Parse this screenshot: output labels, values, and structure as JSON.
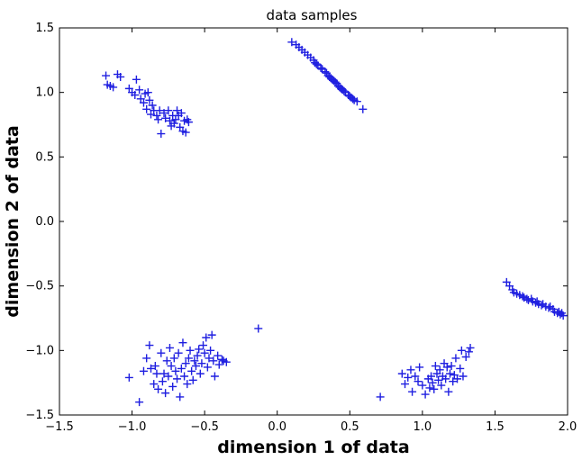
{
  "chart_data": {
    "type": "scatter",
    "title": "data samples",
    "xlabel": "dimension 1 of data",
    "ylabel": "dimension 2 of data",
    "xlim": [
      -1.5,
      2.0
    ],
    "ylim": [
      -1.5,
      1.5
    ],
    "xticks": [
      "−1.5",
      "−1.0",
      "−0.5",
      "0.0",
      "0.5",
      "1.0",
      "1.5",
      "2.0"
    ],
    "yticks": [
      "1.5",
      "1.0",
      "0.5",
      "0.0",
      "−0.5",
      "−1.0",
      "−1.5"
    ],
    "grid": false,
    "marker": "+",
    "marker_color": "#1f1fe0",
    "series": [
      {
        "points": [
          [
            -1.18,
            1.13
          ],
          [
            -1.17,
            1.06
          ],
          [
            -1.15,
            1.05
          ],
          [
            -1.13,
            1.04
          ],
          [
            -1.1,
            1.14
          ],
          [
            -1.08,
            1.12
          ],
          [
            -1.02,
            1.03
          ],
          [
            -1.0,
            1.0
          ],
          [
            -0.98,
            0.98
          ],
          [
            -0.97,
            1.1
          ],
          [
            -0.95,
            1.02
          ],
          [
            -0.94,
            0.95
          ],
          [
            -0.92,
            0.92
          ],
          [
            -0.91,
            0.99
          ],
          [
            -0.9,
            0.87
          ],
          [
            -0.89,
            1.0
          ],
          [
            -0.88,
            0.94
          ],
          [
            -0.87,
            0.83
          ],
          [
            -0.86,
            0.9
          ],
          [
            -0.85,
            0.86
          ],
          [
            -0.83,
            0.82
          ],
          [
            -0.82,
            0.79
          ],
          [
            -0.81,
            0.86
          ],
          [
            -0.8,
            0.68
          ],
          [
            -0.78,
            0.84
          ],
          [
            -0.77,
            0.8
          ],
          [
            -0.75,
            0.86
          ],
          [
            -0.74,
            0.78
          ],
          [
            -0.73,
            0.74
          ],
          [
            -0.72,
            0.82
          ],
          [
            -0.71,
            0.76
          ],
          [
            -0.7,
            0.79
          ],
          [
            -0.69,
            0.86
          ],
          [
            -0.68,
            0.82
          ],
          [
            -0.67,
            0.73
          ],
          [
            -0.66,
            0.84
          ],
          [
            -0.65,
            0.7
          ],
          [
            -0.64,
            0.78
          ],
          [
            -0.63,
            0.69
          ],
          [
            -0.62,
            0.79
          ],
          [
            -0.61,
            0.77
          ]
        ]
      },
      {
        "points": [
          [
            0.1,
            1.39
          ],
          [
            0.13,
            1.37
          ],
          [
            0.15,
            1.35
          ],
          [
            0.17,
            1.33
          ],
          [
            0.19,
            1.31
          ],
          [
            0.21,
            1.29
          ],
          [
            0.23,
            1.27
          ],
          [
            0.25,
            1.25
          ],
          [
            0.26,
            1.23
          ],
          [
            0.27,
            1.22
          ],
          [
            0.28,
            1.21
          ],
          [
            0.3,
            1.19
          ],
          [
            0.31,
            1.18
          ],
          [
            0.33,
            1.16
          ],
          [
            0.34,
            1.15
          ],
          [
            0.35,
            1.13
          ],
          [
            0.36,
            1.12
          ],
          [
            0.37,
            1.11
          ],
          [
            0.38,
            1.1
          ],
          [
            0.39,
            1.09
          ],
          [
            0.4,
            1.08
          ],
          [
            0.41,
            1.07
          ],
          [
            0.42,
            1.05
          ],
          [
            0.43,
            1.04
          ],
          [
            0.44,
            1.03
          ],
          [
            0.45,
            1.02
          ],
          [
            0.46,
            1.01
          ],
          [
            0.47,
            1.0
          ],
          [
            0.49,
            0.98
          ],
          [
            0.5,
            0.97
          ],
          [
            0.51,
            0.96
          ],
          [
            0.52,
            0.95
          ],
          [
            0.53,
            0.94
          ],
          [
            0.55,
            0.93
          ],
          [
            0.59,
            0.87
          ]
        ]
      },
      {
        "points": [
          [
            1.58,
            -0.47
          ],
          [
            1.6,
            -0.5
          ],
          [
            1.62,
            -0.53
          ],
          [
            1.63,
            -0.55
          ],
          [
            1.65,
            -0.56
          ],
          [
            1.67,
            -0.57
          ],
          [
            1.69,
            -0.58
          ],
          [
            1.7,
            -0.59
          ],
          [
            1.72,
            -0.6
          ],
          [
            1.73,
            -0.61
          ],
          [
            1.75,
            -0.6
          ],
          [
            1.76,
            -0.62
          ],
          [
            1.78,
            -0.63
          ],
          [
            1.79,
            -0.62
          ],
          [
            1.8,
            -0.64
          ],
          [
            1.82,
            -0.65
          ],
          [
            1.83,
            -0.64
          ],
          [
            1.85,
            -0.66
          ],
          [
            1.87,
            -0.67
          ],
          [
            1.88,
            -0.66
          ],
          [
            1.9,
            -0.68
          ],
          [
            1.91,
            -0.7
          ],
          [
            1.93,
            -0.71
          ],
          [
            1.94,
            -0.7
          ],
          [
            1.95,
            -0.72
          ],
          [
            1.96,
            -0.71
          ],
          [
            1.97,
            -0.73
          ]
        ]
      },
      {
        "points": [
          [
            -1.02,
            -1.21
          ],
          [
            -0.95,
            -1.4
          ],
          [
            -0.92,
            -1.16
          ],
          [
            -0.9,
            -1.06
          ],
          [
            -0.88,
            -0.96
          ],
          [
            -0.87,
            -1.14
          ],
          [
            -0.85,
            -1.26
          ],
          [
            -0.84,
            -1.12
          ],
          [
            -0.83,
            -1.18
          ],
          [
            -0.82,
            -1.3
          ],
          [
            -0.8,
            -1.02
          ],
          [
            -0.79,
            -1.24
          ],
          [
            -0.78,
            -1.18
          ],
          [
            -0.77,
            -1.33
          ],
          [
            -0.76,
            -1.08
          ],
          [
            -0.75,
            -1.2
          ],
          [
            -0.74,
            -0.98
          ],
          [
            -0.73,
            -1.12
          ],
          [
            -0.72,
            -1.28
          ],
          [
            -0.71,
            -1.06
          ],
          [
            -0.7,
            -1.16
          ],
          [
            -0.69,
            -1.22
          ],
          [
            -0.68,
            -1.02
          ],
          [
            -0.67,
            -1.36
          ],
          [
            -0.66,
            -1.14
          ],
          [
            -0.65,
            -0.94
          ],
          [
            -0.64,
            -1.2
          ],
          [
            -0.63,
            -1.1
          ],
          [
            -0.62,
            -1.26
          ],
          [
            -0.61,
            -1.06
          ],
          [
            -0.6,
            -1.0
          ],
          [
            -0.59,
            -1.16
          ],
          [
            -0.58,
            -1.23
          ],
          [
            -0.57,
            -1.08
          ],
          [
            -0.56,
            -1.12
          ],
          [
            -0.55,
            -1.04
          ],
          [
            -0.54,
            -0.99
          ],
          [
            -0.53,
            -1.18
          ],
          [
            -0.52,
            -1.1
          ],
          [
            -0.51,
            -0.96
          ],
          [
            -0.5,
            -1.02
          ],
          [
            -0.49,
            -0.9
          ],
          [
            -0.48,
            -1.13
          ],
          [
            -0.47,
            -1.06
          ],
          [
            -0.46,
            -1.0
          ],
          [
            -0.45,
            -0.88
          ],
          [
            -0.44,
            -1.08
          ],
          [
            -0.43,
            -1.2
          ],
          [
            -0.41,
            -1.04
          ],
          [
            -0.4,
            -1.11
          ],
          [
            -0.38,
            -1.07
          ],
          [
            -0.37,
            -1.08
          ],
          [
            -0.35,
            -1.09
          ],
          [
            -0.13,
            -0.83
          ]
        ]
      },
      {
        "points": [
          [
            0.71,
            -1.36
          ],
          [
            0.86,
            -1.18
          ],
          [
            0.88,
            -1.26
          ],
          [
            0.9,
            -1.21
          ],
          [
            0.92,
            -1.15
          ],
          [
            0.93,
            -1.32
          ],
          [
            0.95,
            -1.2
          ],
          [
            0.97,
            -1.24
          ],
          [
            0.98,
            -1.13
          ],
          [
            1.0,
            -1.27
          ],
          [
            1.02,
            -1.34
          ],
          [
            1.04,
            -1.22
          ],
          [
            1.05,
            -1.29
          ],
          [
            1.06,
            -1.2
          ],
          [
            1.07,
            -1.25
          ],
          [
            1.08,
            -1.3
          ],
          [
            1.09,
            -1.12
          ],
          [
            1.1,
            -1.18
          ],
          [
            1.11,
            -1.23
          ],
          [
            1.12,
            -1.15
          ],
          [
            1.13,
            -1.27
          ],
          [
            1.14,
            -1.2
          ],
          [
            1.15,
            -1.1
          ],
          [
            1.16,
            -1.22
          ],
          [
            1.17,
            -1.13
          ],
          [
            1.18,
            -1.32
          ],
          [
            1.19,
            -1.18
          ],
          [
            1.2,
            -1.12
          ],
          [
            1.21,
            -1.24
          ],
          [
            1.22,
            -1.19
          ],
          [
            1.23,
            -1.06
          ],
          [
            1.24,
            -1.22
          ],
          [
            1.26,
            -1.14
          ],
          [
            1.27,
            -1.0
          ],
          [
            1.28,
            -1.2
          ],
          [
            1.3,
            -1.05
          ],
          [
            1.32,
            -1.01
          ],
          [
            1.33,
            -0.98
          ]
        ]
      }
    ]
  }
}
